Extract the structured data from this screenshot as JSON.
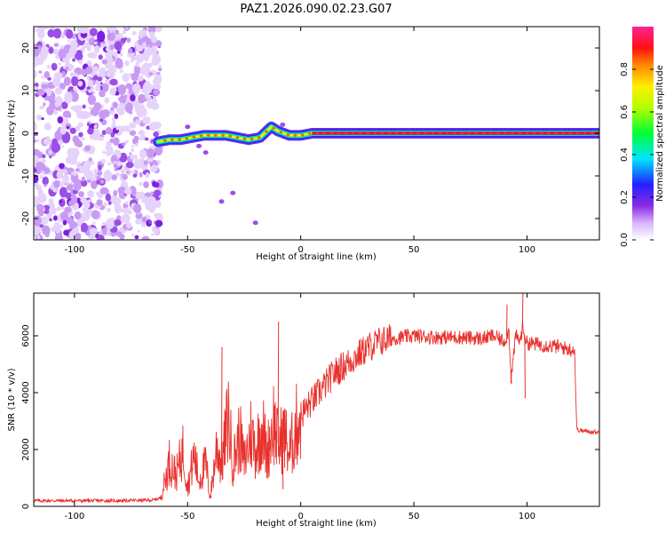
{
  "title": "PAZ1.2026.090.02.23.G07",
  "chart_data": [
    {
      "type": "heatmap",
      "name": "spectrogram",
      "xlabel": "Height of straight line (km)",
      "ylabel": "Frequency (Hz)",
      "xlim": [
        -118,
        132
      ],
      "ylim": [
        -25,
        25
      ],
      "xticks": [
        -100,
        -50,
        0,
        50,
        100
      ],
      "xtick_labels": [
        "-100",
        "-50",
        "0",
        "50",
        "100"
      ],
      "yticks": [
        -20,
        -10,
        0,
        10,
        20
      ],
      "ytick_labels": [
        "-20",
        "-10",
        "0",
        "10",
        "20"
      ],
      "noise_region_x": [
        -118,
        -62
      ],
      "ridge_x": [
        -63,
        -58,
        -53,
        -48,
        -43,
        -38,
        -33,
        -28,
        -23,
        -18,
        -13,
        -10,
        -5,
        0,
        5,
        20,
        40,
        60,
        80,
        100,
        120,
        132
      ],
      "ridge_freq_hz": [
        -2,
        -1.5,
        -1.5,
        -1,
        -0.5,
        -0.5,
        -0.5,
        -1,
        -1.5,
        -1,
        1.5,
        0.5,
        -0.5,
        -0.5,
        0,
        0,
        0,
        0,
        0,
        0,
        0,
        0
      ],
      "colorbar": {
        "label": "Normalized spectral amplitude",
        "range": [
          0,
          1
        ],
        "ticks": [
          0.0,
          0.2,
          0.4,
          0.6,
          0.8
        ],
        "tick_labels": [
          "0.0",
          "0.2",
          "0.4",
          "0.6",
          "0.8"
        ]
      }
    },
    {
      "type": "line",
      "name": "snr",
      "color": "#e8302c",
      "xlabel": "Height of straight line (km)",
      "ylabel": "SNR (10 * v/v)",
      "xlim": [
        -118,
        132
      ],
      "ylim": [
        0,
        7500
      ],
      "xticks": [
        -100,
        -50,
        0,
        50,
        100
      ],
      "xtick_labels": [
        "-100",
        "-50",
        "0",
        "50",
        "100"
      ],
      "yticks": [
        0,
        2000,
        4000,
        6000
      ],
      "ytick_labels": [
        "0",
        "2000",
        "4000",
        "6000"
      ],
      "x": [
        -118,
        -100,
        -80,
        -65,
        -62,
        -60,
        -58,
        -55,
        -52,
        -50,
        -47,
        -45,
        -42,
        -40,
        -37,
        -35,
        -32,
        -30,
        -27,
        -25,
        -22,
        -20,
        -17,
        -15,
        -12,
        -10,
        -7,
        -5,
        -2,
        0,
        5,
        10,
        15,
        20,
        25,
        30,
        35,
        40,
        45,
        50,
        60,
        70,
        80,
        85,
        90,
        92,
        93,
        95,
        97,
        98,
        100,
        105,
        110,
        115,
        120,
        121,
        122,
        125,
        132
      ],
      "values": [
        200,
        200,
        200,
        220,
        300,
        900,
        1600,
        1100,
        2000,
        700,
        1800,
        900,
        1500,
        300,
        2200,
        1400,
        3200,
        1500,
        2500,
        1500,
        2600,
        2000,
        2800,
        1800,
        3000,
        2200,
        2500,
        1800,
        2800,
        3200,
        3700,
        4200,
        4700,
        5000,
        5300,
        5600,
        5800,
        5900,
        5950,
        6000,
        5950,
        5950,
        5900,
        6000,
        5800,
        6200,
        4500,
        6000,
        5800,
        6300,
        5750,
        5700,
        5650,
        5600,
        5500,
        5600,
        2700,
        2650,
        2600
      ],
      "spikes": [
        {
          "x": -35,
          "y": 5600
        },
        {
          "x": -10,
          "y": 6500
        },
        {
          "x": -8,
          "y": 600
        },
        {
          "x": 91,
          "y": 7100
        },
        {
          "x": 93,
          "y": 4300
        },
        {
          "x": 98,
          "y": 7500
        },
        {
          "x": 99,
          "y": 3800
        }
      ]
    }
  ]
}
